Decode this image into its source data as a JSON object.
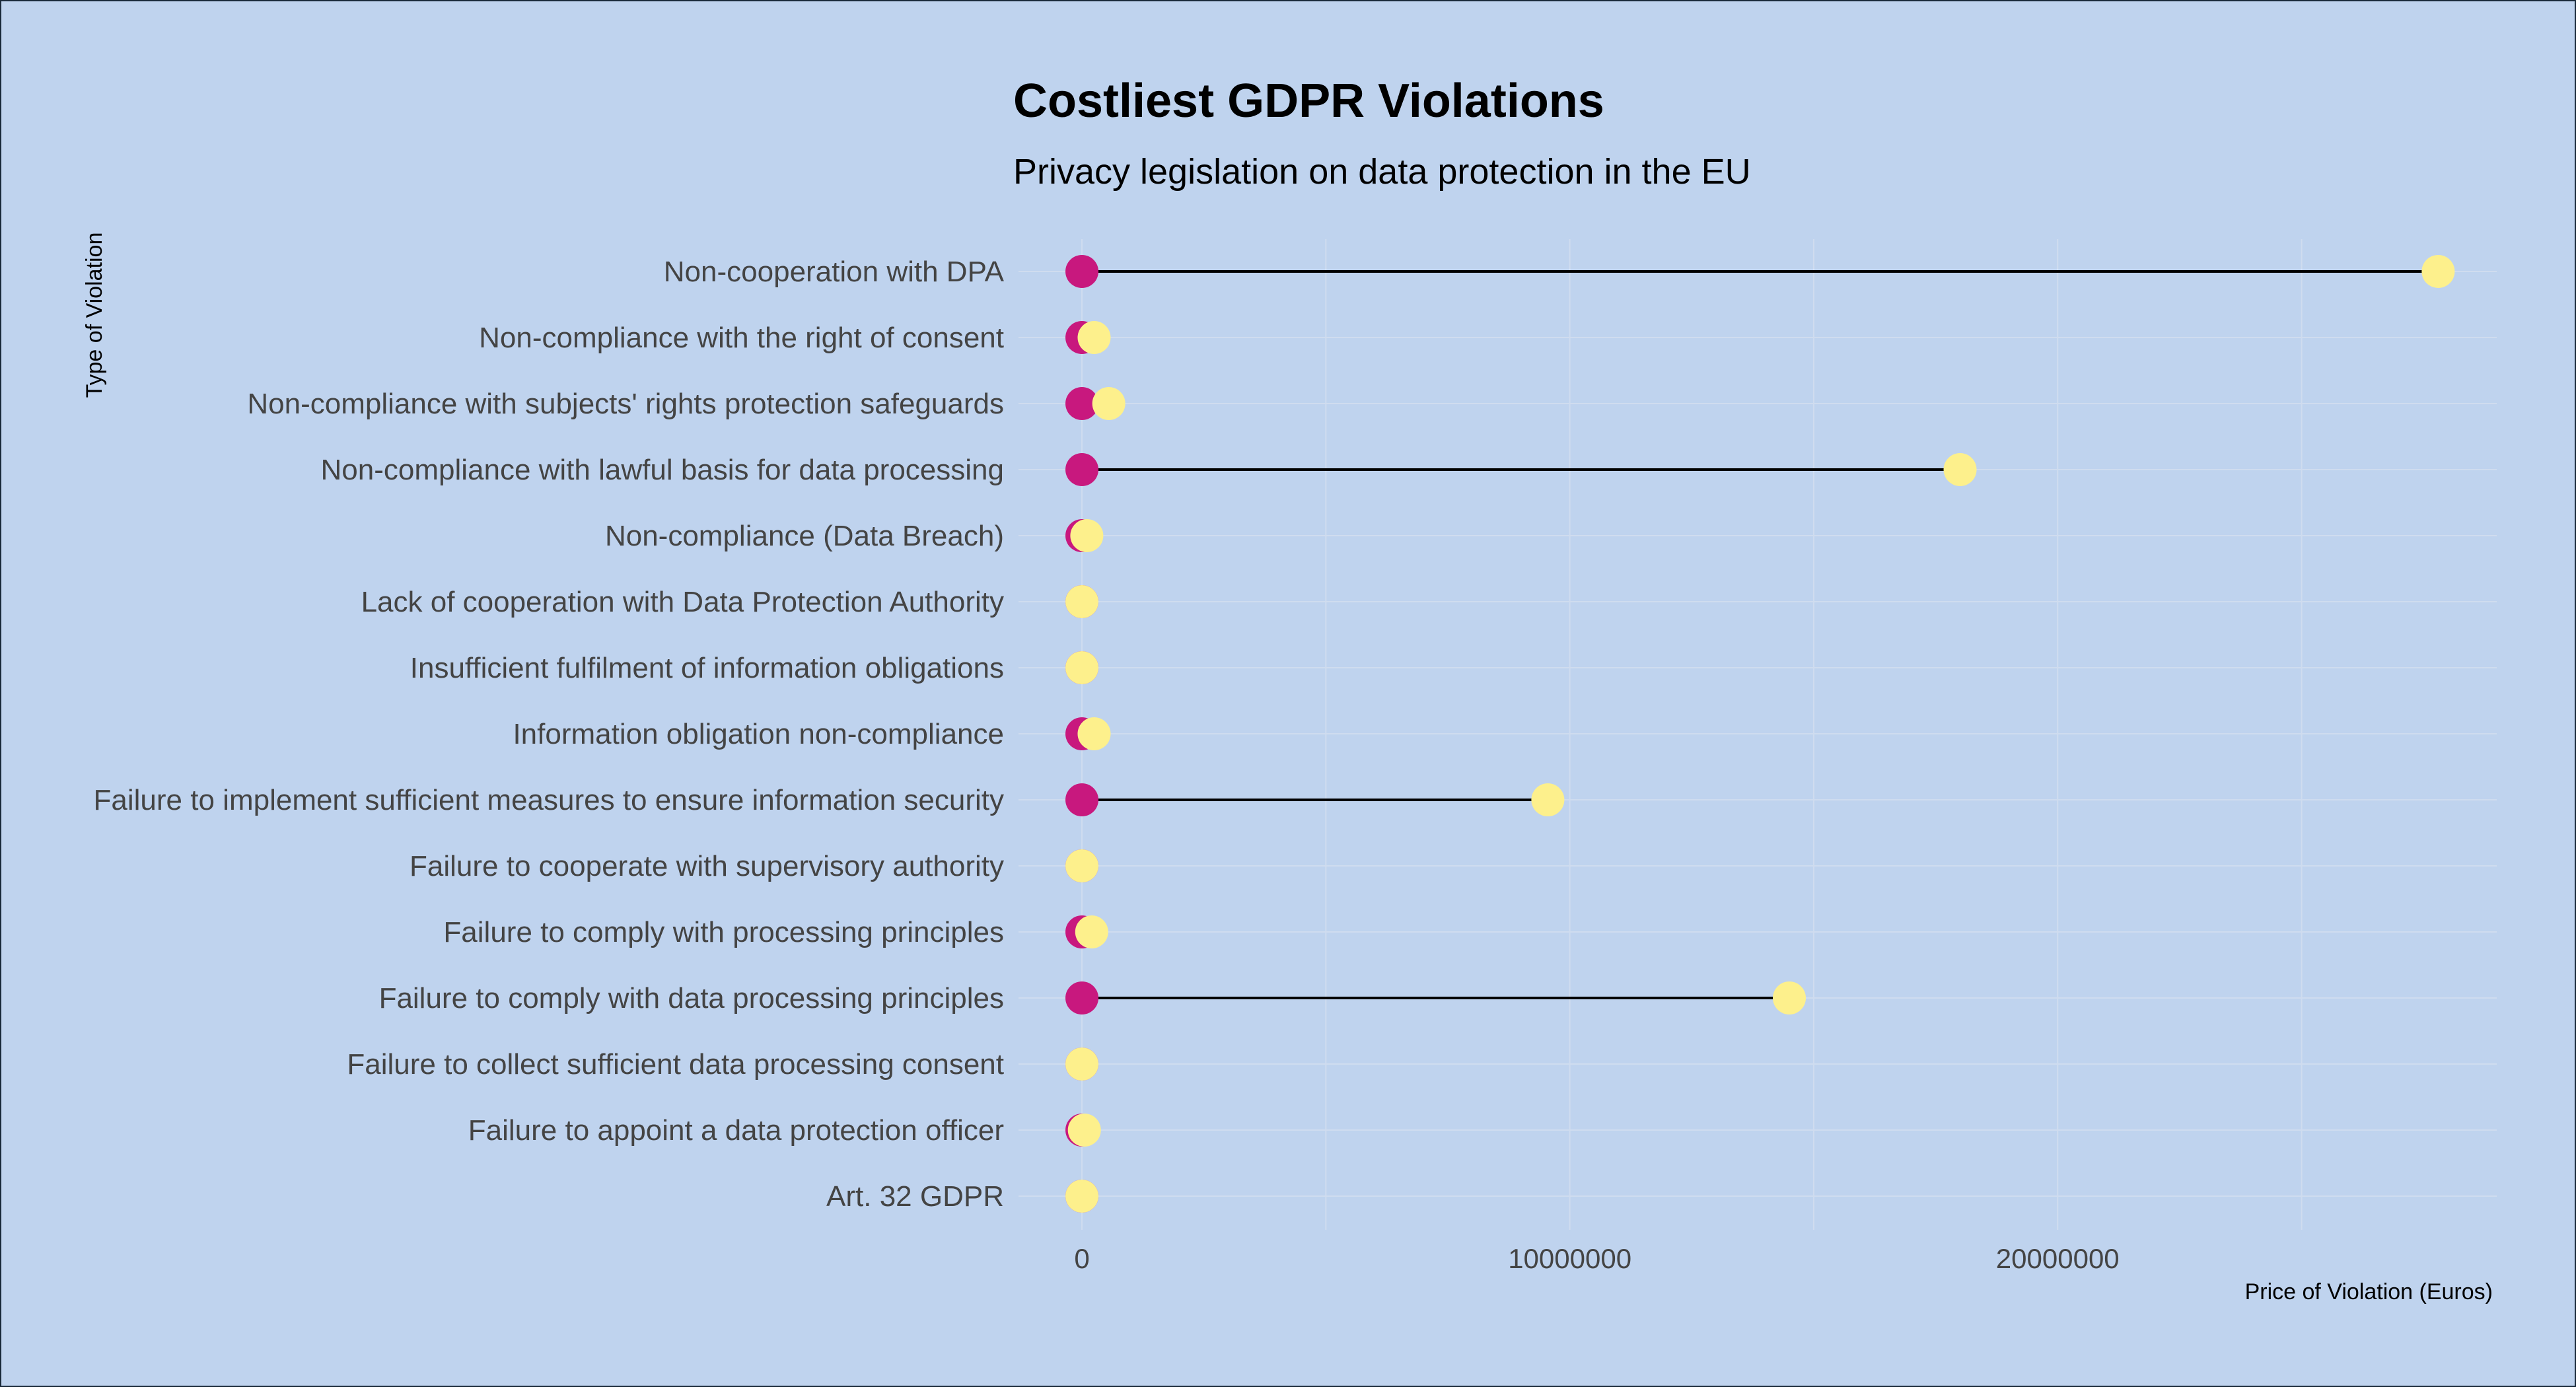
{
  "chart_data": {
    "type": "dumbbell",
    "title": "Costliest GDPR Violations",
    "subtitle": "Privacy legislation on data protection in the EU",
    "xlabel": "Price of Violation (Euros)",
    "ylabel": "Type of Violation",
    "xlim": [
      -1300000,
      29000000
    ],
    "xticks": [
      0,
      10000000,
      20000000
    ],
    "xtick_labels": [
      "0",
      "10000000",
      "20000000"
    ],
    "grid": true,
    "colors": {
      "start": "#c8187e",
      "end": "#fdf08c",
      "background": "#bfd3ee"
    },
    "categories": [
      "Non-cooperation with DPA",
      "Non-compliance with the right of consent",
      "Non-compliance with subjects' rights protection safeguards",
      "Non-compliance with lawful basis for data processing",
      "Non-compliance (Data Breach)",
      "Lack of cooperation with Data Protection Authority",
      "Insufficient fulfilment of information obligations",
      "Information obligation non-compliance",
      "Failure to implement sufficient measures to ensure information security",
      "Failure to cooperate with supervisory authority",
      "Failure to comply with processing principles",
      "Failure to comply with data processing principles",
      "Failure to collect sufficient data processing consent",
      "Failure to appoint a data protection officer",
      "Art. 32 GDPR"
    ],
    "series": [
      {
        "values": [
          0,
          0,
          0,
          0,
          0,
          0,
          0,
          0,
          0,
          0,
          0,
          0,
          0,
          0,
          0
        ]
      },
      {
        "values": [
          27800000,
          250000,
          550000,
          18000000,
          100000,
          0,
          0,
          250000,
          9550000,
          0,
          200000,
          14500000,
          0,
          50000,
          0
        ]
      }
    ]
  }
}
